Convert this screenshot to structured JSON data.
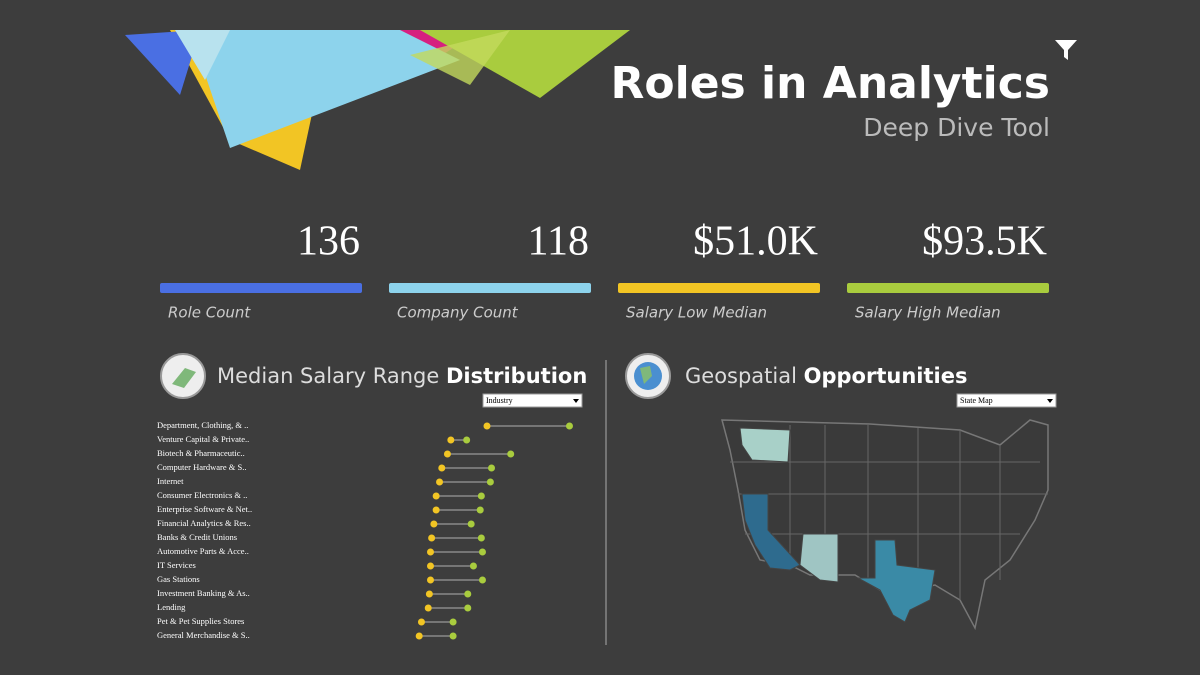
{
  "header": {
    "title": "Roles in Analytics",
    "subtitle": "Deep Dive Tool"
  },
  "kpis": [
    {
      "value": 136,
      "label": "Role Count",
      "color": "#4a6fe3"
    },
    {
      "value": 118,
      "label": "Company Count",
      "color": "#8dd3ec"
    },
    {
      "value": "$51.0K",
      "label": "Salary Low Median",
      "color": "#f2c524"
    },
    {
      "value": "$93.5K",
      "label": "Salary High Median",
      "color": "#a9cc3e"
    }
  ],
  "salary_section": {
    "title_light": "Median Salary Range",
    "title_bold": "Distribution",
    "dropdown": "Industry"
  },
  "geo_section": {
    "title_light": "Geospatial",
    "title_bold": "Opportunities",
    "dropdown": "State Map"
  },
  "salary_chart": {
    "type": "dumbbell",
    "categories": [
      "Department, Clothing, & ..",
      "Venture Capital & Private..",
      "Biotech & Pharmaceutic..",
      "Computer Hardware & S..",
      "Internet",
      "Consumer Electronics & ..",
      "Enterprise Software & Net..",
      "Financial Analytics & Res..",
      "Banks & Credit Unions",
      "Automotive Parts & Acce..",
      "IT Services",
      "Gas Stations",
      "Investment Banking & As..",
      "Lending",
      "Pet & Pet Supplies Stores",
      "General Merchandise & S.."
    ],
    "low_values": [
      100,
      68,
      65,
      60,
      58,
      55,
      55,
      53,
      51,
      50,
      50,
      50,
      49,
      48,
      42,
      40
    ],
    "high_values": [
      173,
      82,
      121,
      104,
      103,
      95,
      94,
      86,
      95,
      96,
      88,
      96,
      83,
      83,
      70,
      70
    ],
    "low_color": "#f2c524",
    "high_color": "#a9cc3e"
  }
}
